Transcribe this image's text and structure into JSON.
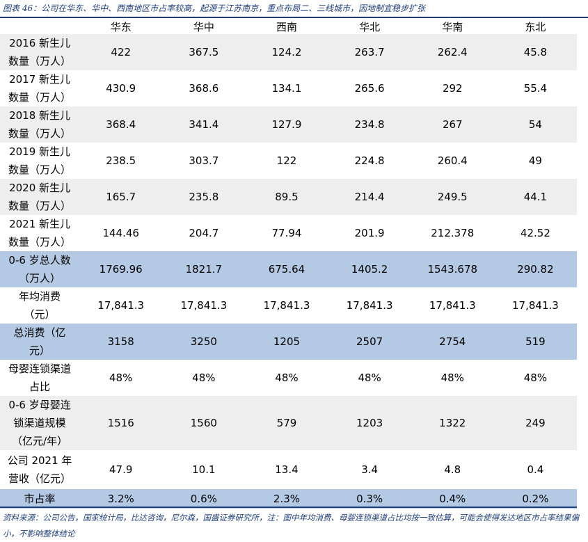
{
  "title": "图表 46：公司在华东、华中、西南地区市占率较高，起源于江苏南京，重点布局二、三线城市，因地制宜稳步扩张",
  "table": {
    "columns": [
      "华东",
      "华中",
      "西南",
      "华北",
      "华南",
      "东北"
    ],
    "rows": [
      {
        "label_lines": [
          "2016 新生儿",
          "数量（万人）"
        ],
        "values": [
          "422",
          "367.5",
          "124.2",
          "263.7",
          "262.4",
          "45.8"
        ]
      },
      {
        "label_lines": [
          "2017 新生儿",
          "数量（万人）"
        ],
        "values": [
          "430.9",
          "368.6",
          "134.1",
          "265.6",
          "292",
          "55.4"
        ]
      },
      {
        "label_lines": [
          "2018 新生儿",
          "数量（万人）"
        ],
        "values": [
          "368.4",
          "341.4",
          "127.9",
          "234.8",
          "267",
          "54"
        ]
      },
      {
        "label_lines": [
          "2019 新生儿",
          "数量（万人）"
        ],
        "values": [
          "238.5",
          "303.7",
          "122",
          "224.8",
          "260.4",
          "49"
        ]
      },
      {
        "label_lines": [
          "2020 新生儿",
          "数量（万人）"
        ],
        "values": [
          "165.7",
          "235.8",
          "89.5",
          "214.4",
          "249.5",
          "44.1"
        ]
      },
      {
        "label_lines": [
          "2021 新生儿",
          "数量（万人）"
        ],
        "values": [
          "144.46",
          "204.7",
          "77.94",
          "201.9",
          "212.378",
          "42.52"
        ]
      },
      {
        "label_lines": [
          "0-6 岁总人数",
          "（万人）"
        ],
        "values": [
          "1769.96",
          "1821.7",
          "675.64",
          "1405.2",
          "1543.678",
          "290.82"
        ]
      },
      {
        "label_lines": [
          "年均消费",
          "（元）"
        ],
        "values": [
          "17,841.3",
          "17,841.3",
          "17,841.3",
          "17,841.3",
          "17,841.3",
          "17,841.3"
        ]
      },
      {
        "label_lines": [
          "总消费（亿",
          "元）"
        ],
        "values": [
          "3158",
          "3250",
          "1205",
          "2507",
          "2754",
          "519"
        ]
      },
      {
        "label_lines": [
          "母婴连锁渠道",
          "占比"
        ],
        "values": [
          "48%",
          "48%",
          "48%",
          "48%",
          "48%",
          "48%"
        ]
      },
      {
        "label_lines": [
          "0-6 岁母婴连",
          "锁渠道规模",
          "（亿元/年）"
        ],
        "values": [
          "1516",
          "1560",
          "579",
          "1203",
          "1322",
          "249"
        ]
      },
      {
        "label_lines": [
          "公司 2021 年",
          "营收（亿元）"
        ],
        "values": [
          "47.9",
          "10.1",
          "13.4",
          "3.4",
          "4.8",
          "0.4"
        ]
      },
      {
        "label_lines": [
          "市占率"
        ],
        "values": [
          "3.2%",
          "0.6%",
          "2.3%",
          "0.3%",
          "0.4%",
          "0.2%"
        ]
      }
    ]
  },
  "source": "资料来源：公司公告，国家统计局，比达咨询，尼尔森，国盛证券研究所，注：图中年均消费、母婴连锁渠道占比均按一致估算，可能会使得发达地区市占率结果偏小，不影响整体结论"
}
